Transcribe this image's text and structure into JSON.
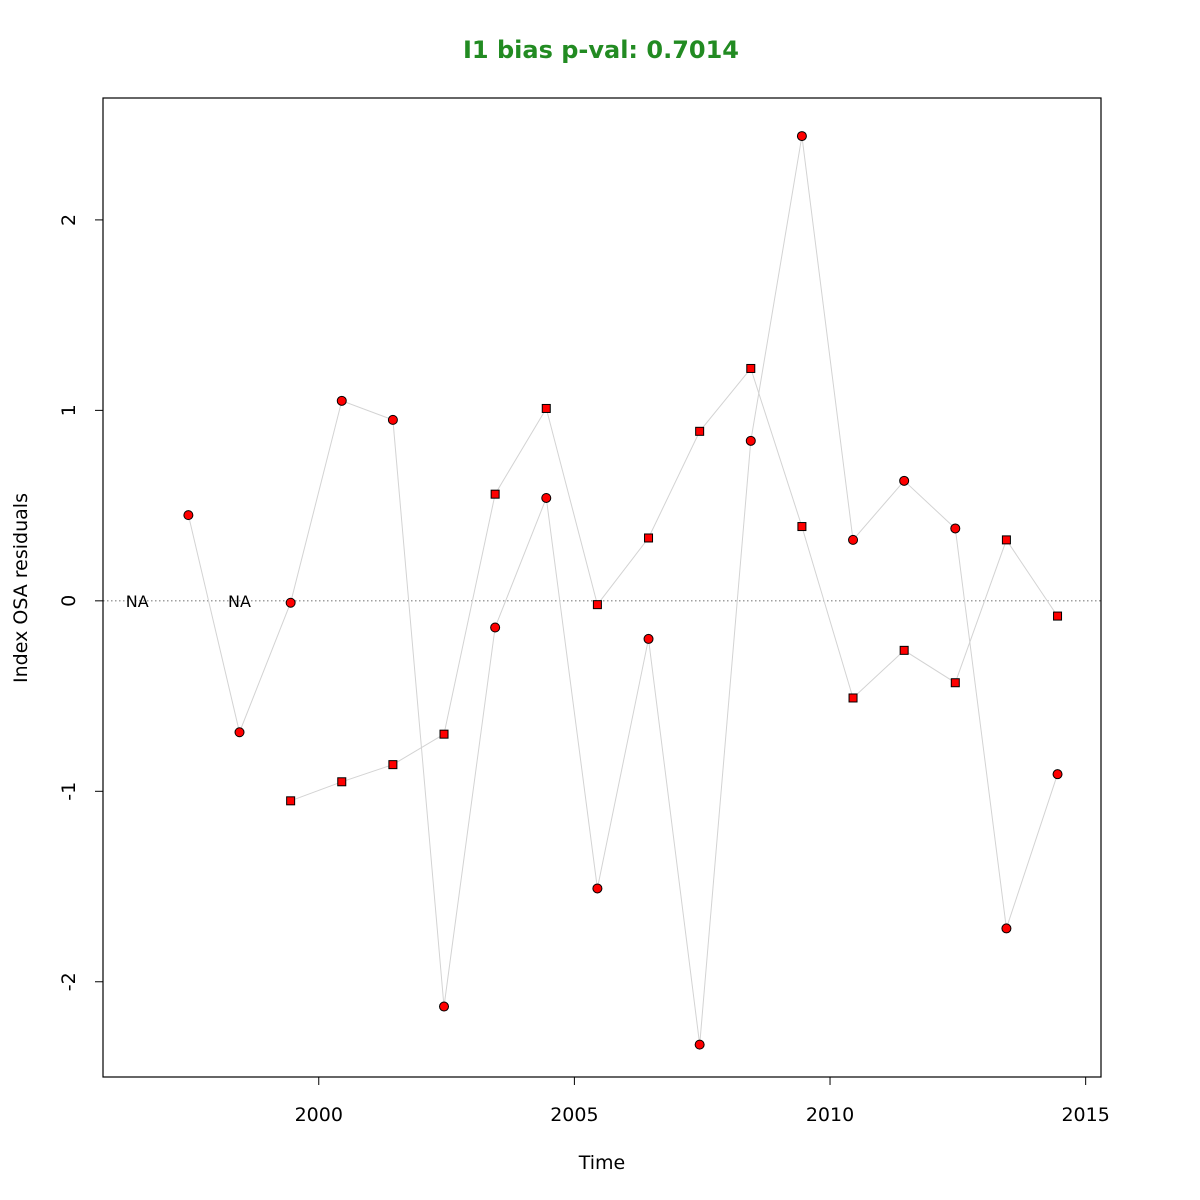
{
  "chart_data": {
    "type": "scatter",
    "title": "I1 bias p-val: 0.7014",
    "title_color": "#228B22",
    "xlabel": "Time",
    "ylabel": "Index OSA residuals",
    "xlim": [
      1995.78,
      2015.3
    ],
    "ylim": [
      -2.5,
      2.64
    ],
    "x_ticks": [
      2000,
      2005,
      2010,
      2015
    ],
    "y_ticks": [
      -2,
      -1,
      0,
      1,
      2
    ],
    "reference_line": {
      "y": 0,
      "style": "dotted",
      "color": "#808080"
    },
    "connector_color": "#D3D3D3",
    "marker_fill": "#FF0000",
    "marker_stroke": "#000000",
    "na_labels": [
      {
        "x": 1996.45,
        "y": 0,
        "text": "NA"
      },
      {
        "x": 1998.45,
        "y": 0,
        "text": "NA"
      }
    ],
    "series": [
      {
        "marker": "circle",
        "x": [
          1997.45,
          1998.45,
          1999.45,
          2000.45,
          2001.45,
          2002.45,
          2003.45,
          2004.45,
          2005.45,
          2006.45,
          2007.45,
          2008.45,
          2009.45,
          2010.45,
          2011.45,
          2012.45,
          2013.45,
          2014.45
        ],
        "y": [
          0.45,
          -0.69,
          -0.01,
          1.05,
          0.95,
          -2.13,
          -0.14,
          0.54,
          -1.51,
          -0.2,
          -2.33,
          0.84,
          2.44,
          0.32,
          0.63,
          0.38,
          -1.72,
          -0.91
        ]
      },
      {
        "marker": "square",
        "x": [
          1999.45,
          2000.45,
          2001.45,
          2002.45,
          2003.45,
          2004.45,
          2005.45,
          2006.45,
          2007.45,
          2008.45,
          2009.45,
          2010.45,
          2011.45,
          2012.45,
          2013.45,
          2014.45
        ],
        "y": [
          -1.05,
          -0.95,
          -0.86,
          -0.7,
          0.56,
          1.01,
          -0.02,
          0.33,
          0.89,
          1.22,
          0.39,
          -0.51,
          -0.26,
          -0.43,
          0.32,
          -0.08
        ]
      }
    ]
  }
}
